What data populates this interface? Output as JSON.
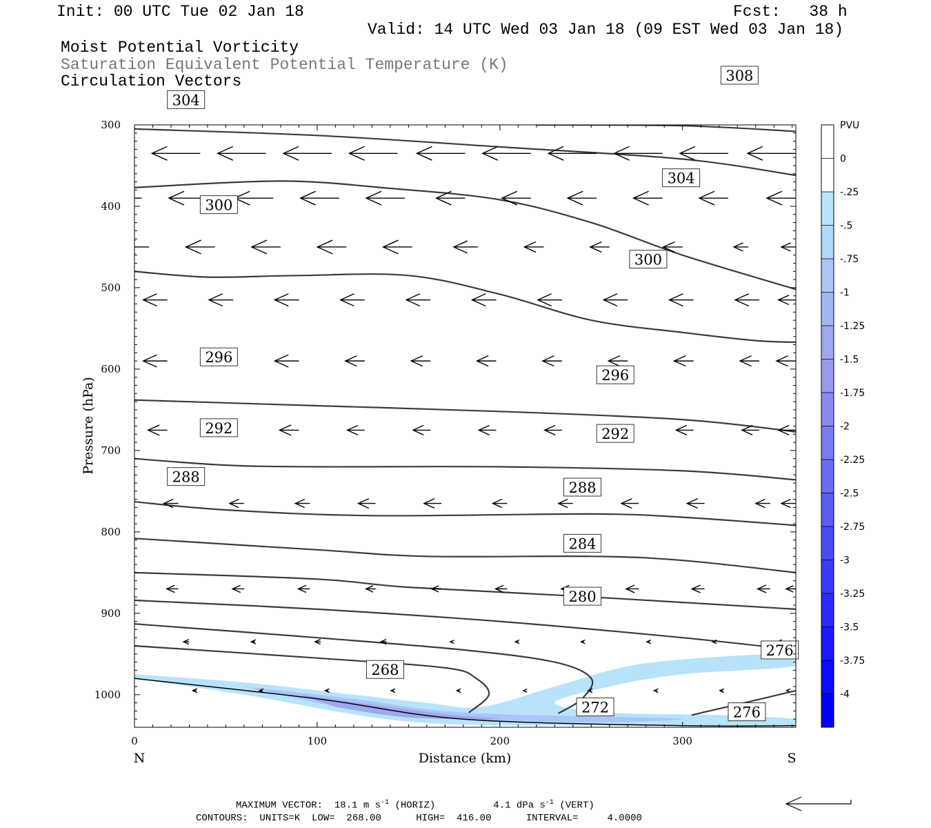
{
  "header": {
    "init": "Init: 00 UTC Tue 02 Jan 18",
    "fcst": "Fcst:   38 h",
    "valid": "Valid: 14 UTC Wed 03 Jan 18 (09 EST Wed 03 Jan 18)",
    "field1": "Moist Potential Vorticity",
    "field2": "Saturation Equivalent Potential Temperature (K)",
    "field3": "Circulation Vectors"
  },
  "footer": {
    "line1_a": "MAXIMUM VECTOR:  18.1 m s",
    "line1_b": "(HORIZ)",
    "line1_c": "4.1 dPa s",
    "line1_d": "(VERT)",
    "sup": "-1",
    "line2": "CONTOURS:  UNITS=K  LOW=  268.00      HIGH=  416.00      INTERVAL=     4.0000"
  },
  "colors": {
    "contour": "#3a3a3a",
    "vector": "#000000",
    "pv_fill_light": "#b8e3fa",
    "pv_fill_mid": "#a9c6f5",
    "pv_fill_dark": "#9fa8ee"
  },
  "chart_data": {
    "type": "cross-section",
    "xlabel": "Distance (km)",
    "ylabel": "Pressure (hPa)",
    "xlim": [
      0,
      362
    ],
    "ylim": [
      300,
      1040
    ],
    "x_ticks": [
      "0",
      "100",
      "200",
      "300"
    ],
    "y_ticks": [
      "300",
      "400",
      "500",
      "600",
      "700",
      "800",
      "900",
      "1000"
    ],
    "x_end_labels": {
      "left": "N",
      "right": "S"
    },
    "contours": [
      {
        "level": 268,
        "points": [
          [
            0,
            940
          ],
          [
            100,
            955
          ],
          [
            170,
            967
          ],
          [
            187,
            980
          ],
          [
            194,
            1000
          ],
          [
            183,
            1022
          ]
        ]
      },
      {
        "level": 272,
        "points": [
          [
            0,
            913
          ],
          [
            100,
            930
          ],
          [
            180,
            945
          ],
          [
            230,
            960
          ],
          [
            250,
            980
          ],
          [
            245,
            1005
          ],
          [
            232,
            1023
          ]
        ]
      },
      {
        "level": 276,
        "points": [
          [
            0,
            884
          ],
          [
            100,
            895
          ],
          [
            200,
            910
          ],
          [
            300,
            930
          ],
          [
            362,
            945
          ]
        ]
      },
      {
        "level": 276,
        "points": [
          [
            305,
            1025
          ],
          [
            330,
            1012
          ],
          [
            362,
            995
          ]
        ]
      },
      {
        "level": 280,
        "points": [
          [
            0,
            850
          ],
          [
            100,
            858
          ],
          [
            150,
            868
          ],
          [
            250,
            880
          ],
          [
            362,
            895
          ]
        ]
      },
      {
        "level": 284,
        "points": [
          [
            0,
            808
          ],
          [
            100,
            822
          ],
          [
            160,
            830
          ],
          [
            250,
            830
          ],
          [
            300,
            835
          ],
          [
            362,
            850
          ]
        ]
      },
      {
        "level": 288,
        "points": [
          [
            0,
            763
          ],
          [
            50,
            773
          ],
          [
            130,
            780
          ],
          [
            250,
            778
          ],
          [
            300,
            782
          ],
          [
            362,
            792
          ]
        ]
      },
      {
        "level": 292,
        "points": [
          [
            0,
            710
          ],
          [
            50,
            718
          ],
          [
            100,
            720
          ],
          [
            200,
            720
          ],
          [
            300,
            725
          ],
          [
            362,
            736
          ]
        ]
      },
      {
        "level": 296,
        "points": [
          [
            0,
            638
          ],
          [
            100,
            645
          ],
          [
            200,
            652
          ],
          [
            300,
            662
          ],
          [
            362,
            677
          ]
        ]
      },
      {
        "level": 300,
        "points": [
          [
            0,
            480
          ],
          [
            40,
            487
          ],
          [
            90,
            485
          ],
          [
            150,
            485
          ],
          [
            200,
            508
          ],
          [
            250,
            540
          ],
          [
            300,
            555
          ],
          [
            340,
            565
          ],
          [
            362,
            567
          ]
        ]
      },
      {
        "level": 304,
        "points": [
          [
            0,
            377
          ],
          [
            80,
            369
          ],
          [
            140,
            378
          ],
          [
            200,
            392
          ],
          [
            250,
            420
          ],
          [
            300,
            460
          ],
          [
            362,
            502
          ]
        ]
      },
      {
        "level": 308,
        "points": [
          [
            0,
            305
          ],
          [
            100,
            313
          ],
          [
            200,
            327
          ],
          [
            300,
            342
          ],
          [
            362,
            362
          ]
        ]
      },
      {
        "level": 308,
        "points": [
          [
            220,
            300
          ],
          [
            300,
            301
          ],
          [
            362,
            308
          ]
        ]
      }
    ],
    "contour_labels": [
      {
        "text": "268",
        "x": 127,
        "p": 969
      },
      {
        "text": "272",
        "x": 242,
        "p": 1015
      },
      {
        "text": "276",
        "x": 343,
        "p": 945
      },
      {
        "text": "276",
        "x": 325,
        "p": 1021
      },
      {
        "text": "280",
        "x": 235,
        "p": 879
      },
      {
        "text": "284",
        "x": 235,
        "p": 814
      },
      {
        "text": "288",
        "x": 18,
        "p": 732
      },
      {
        "text": "288",
        "x": 235,
        "p": 745
      },
      {
        "text": "292",
        "x": 36,
        "p": 672
      },
      {
        "text": "292",
        "x": 253,
        "p": 679
      },
      {
        "text": "296",
        "x": 36,
        "p": 585
      },
      {
        "text": "296",
        "x": 253,
        "p": 607
      },
      {
        "text": "300",
        "x": 36,
        "p": 398
      },
      {
        "text": "300",
        "x": 271,
        "p": 465
      },
      {
        "text": "304",
        "x": 18,
        "p": 269
      },
      {
        "text": "304",
        "x": 289,
        "p": 365
      },
      {
        "text": "308",
        "x": 321,
        "p": 239
      }
    ],
    "pv_regions": [
      {
        "level": "-0.25",
        "points": [
          [
            0,
            975
          ],
          [
            60,
            985
          ],
          [
            120,
            1000
          ],
          [
            160,
            1010
          ],
          [
            190,
            1015
          ],
          [
            230,
            990
          ],
          [
            270,
            965
          ],
          [
            310,
            955
          ],
          [
            362,
            950
          ],
          [
            362,
            965
          ],
          [
            300,
            975
          ],
          [
            260,
            990
          ],
          [
            230,
            1010
          ],
          [
            260,
            1022
          ],
          [
            320,
            1025
          ],
          [
            362,
            1030
          ],
          [
            362,
            1037
          ],
          [
            250,
            1038
          ],
          [
            150,
            1033
          ],
          [
            60,
            1000
          ],
          [
            0,
            980
          ]
        ]
      },
      {
        "level": "-0.5",
        "points": [
          [
            60,
            990
          ],
          [
            120,
            1005
          ],
          [
            160,
            1018
          ],
          [
            200,
            1024
          ],
          [
            260,
            1027
          ],
          [
            300,
            1030
          ],
          [
            250,
            1034
          ],
          [
            160,
            1028
          ],
          [
            100,
            1010
          ]
        ]
      },
      {
        "level": "-0.75",
        "points": [
          [
            90,
            1000
          ],
          [
            130,
            1012
          ],
          [
            170,
            1024
          ],
          [
            200,
            1030
          ],
          [
            150,
            1028
          ],
          [
            110,
            1015
          ]
        ]
      }
    ],
    "vectors": {
      "x": [
        0,
        36,
        72,
        108,
        144,
        181,
        217,
        253,
        289,
        325,
        362
      ],
      "rows": [
        {
          "p": 335,
          "items": [
            [
              0,
              5
            ],
            [
              36,
              5
            ],
            [
              72,
              5
            ],
            [
              108,
              5
            ],
            [
              144,
              5
            ],
            [
              181,
              5
            ],
            [
              217,
              5
            ],
            [
              253,
              5
            ],
            [
              289,
              5
            ],
            [
              325,
              5
            ],
            [
              362,
              5
            ]
          ]
        },
        {
          "p": 390,
          "items": [
            [
              4,
              4
            ],
            [
              40,
              4
            ],
            [
              76,
              4
            ],
            [
              112,
              4
            ],
            [
              148,
              4
            ],
            [
              181,
              3
            ],
            [
              217,
              3
            ],
            [
              253,
              3
            ],
            [
              289,
              3
            ],
            [
              325,
              3
            ],
            [
              362,
              3
            ]
          ]
        },
        {
          "p": 450,
          "items": [
            [
              8,
              3
            ],
            [
              44,
              3
            ],
            [
              80,
              3
            ],
            [
              116,
              3
            ],
            [
              152,
              3
            ],
            [
              188,
              2.5
            ],
            [
              224,
              2
            ],
            [
              260,
              2
            ],
            [
              300,
              2
            ],
            [
              336,
              1.5
            ],
            [
              362,
              1.5
            ]
          ]
        },
        {
          "p": 515,
          "items": [
            [
              18,
              2.5
            ],
            [
              54,
              2.5
            ],
            [
              90,
              2.5
            ],
            [
              126,
              2.5
            ],
            [
              162,
              2.5
            ],
            [
              198,
              2.5
            ],
            [
              234,
              2.5
            ],
            [
              270,
              2.5
            ],
            [
              306,
              2.5
            ],
            [
              342,
              2.5
            ],
            [
              362,
              1.8
            ]
          ]
        },
        {
          "p": 590,
          "items": [
            [
              18,
              2.5
            ],
            [
              54,
              2
            ],
            [
              90,
              2.5
            ],
            [
              126,
              2
            ],
            [
              162,
              2
            ],
            [
              198,
              2
            ],
            [
              234,
              2
            ],
            [
              270,
              2
            ],
            [
              306,
              2
            ],
            [
              342,
              2
            ],
            [
              362,
              2
            ]
          ]
        },
        {
          "p": 675,
          "items": [
            [
              18,
              2
            ],
            [
              54,
              2
            ],
            [
              90,
              2
            ],
            [
              126,
              1.8
            ],
            [
              162,
              1.8
            ],
            [
              198,
              1.8
            ],
            [
              234,
              1.8
            ],
            [
              270,
              1.8
            ],
            [
              306,
              1.8
            ],
            [
              342,
              1.8
            ],
            [
              362,
              1.8
            ]
          ]
        },
        {
          "p": 765,
          "items": [
            [
              24,
              1.5
            ],
            [
              60,
              1.5
            ],
            [
              96,
              1.5
            ],
            [
              132,
              1.8
            ],
            [
              168,
              1.8
            ],
            [
              204,
              1.5
            ],
            [
              240,
              1.5
            ],
            [
              276,
              1.8
            ],
            [
              312,
              1.8
            ],
            [
              348,
              1.5
            ],
            [
              362,
              1.5
            ]
          ]
        },
        {
          "p": 870,
          "items": [
            [
              24,
              1.2
            ],
            [
              60,
              1.2
            ],
            [
              96,
              1.2
            ],
            [
              132,
              1
            ],
            [
              168,
              1
            ],
            [
              204,
              1.2
            ],
            [
              240,
              1.2
            ],
            [
              276,
              1.3
            ],
            [
              312,
              1.3
            ],
            [
              348,
              1.3
            ],
            [
              362,
              1
            ]
          ]
        },
        {
          "p": 935,
          "items": [
            [
              30,
              0.6
            ],
            [
              66,
              0.4
            ],
            [
              102,
              0.6
            ],
            [
              138,
              0.6
            ],
            [
              174,
              0.2
            ],
            [
              210,
              0.3
            ],
            [
              246,
              0.3
            ],
            [
              282,
              0.3
            ],
            [
              318,
              0.3
            ],
            [
              354,
              0.4
            ],
            [
              362,
              0.2
            ]
          ]
        },
        {
          "p": 995,
          "items": [
            [
              34,
              0.4
            ],
            [
              70,
              0.3
            ],
            [
              106,
              0.3
            ],
            [
              142,
              0.3
            ],
            [
              178,
              0.3
            ],
            [
              214,
              0.2
            ],
            [
              250,
              0.3
            ],
            [
              286,
              0.3
            ],
            [
              322,
              0.3
            ],
            [
              358,
              0.2
            ]
          ]
        }
      ]
    },
    "colorbar": {
      "title": "PVU",
      "labels": [
        "0",
        "-.25",
        "-.5",
        "-.75",
        "-1",
        "-1.25",
        "-1.5",
        "-1.75",
        "-2",
        "-2.25",
        "-2.5",
        "-2.75",
        "-3",
        "-3.25",
        "-3.5",
        "-3.75",
        "-4"
      ],
      "colors": [
        "#ffffff",
        "#ffffff",
        "#b8e3fa",
        "#b0d8f8",
        "#a9c6f5",
        "#a3b6f3",
        "#9fa8ee",
        "#9999ee",
        "#8a8aee",
        "#7b7bf0",
        "#6c6cf2",
        "#5c5cf4",
        "#4b4bf6",
        "#3a3af8",
        "#2a2afa",
        "#1a1afc",
        "#0a0afe",
        "#0000ff"
      ]
    }
  }
}
